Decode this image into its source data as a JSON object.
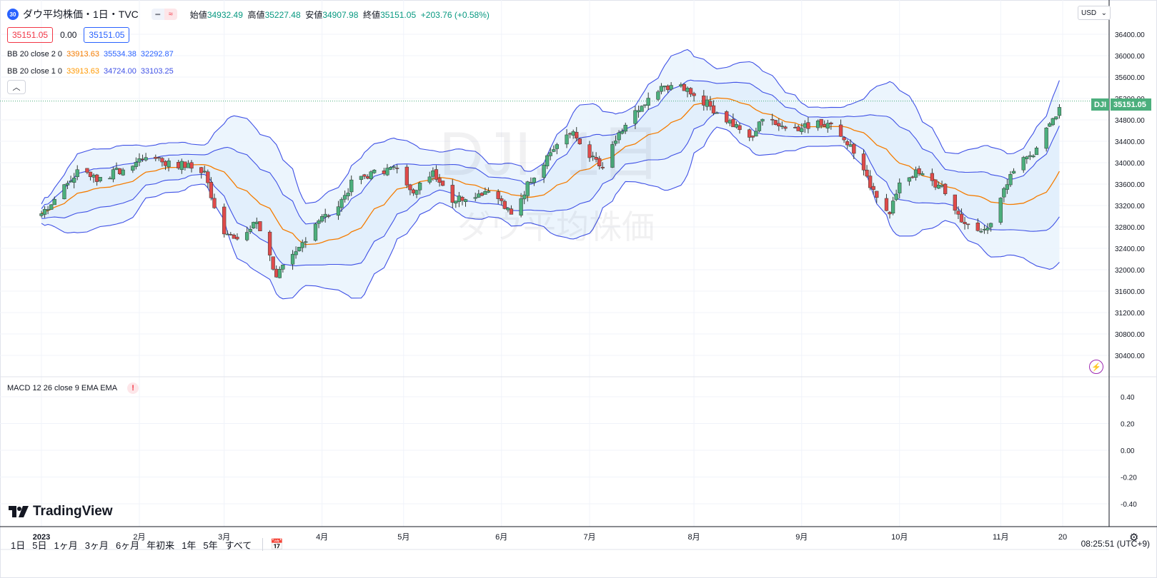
{
  "header": {
    "symbol_badge": "30",
    "title": "ダウ平均株価・1日・TVC",
    "ohlc": {
      "open_label": "始値",
      "open": "34932.49",
      "high_label": "高値",
      "high": "35227.48",
      "low_label": "安値",
      "low": "34907.98",
      "close_label": "終値",
      "close": "35151.05",
      "change": "+203.76 (+0.58%)"
    },
    "bid": "35151.05",
    "spread": "0.00",
    "ask": "35151.05"
  },
  "indicators": {
    "bb2": {
      "name": "BB 20 close 2 0",
      "mid": "33913.63",
      "upper": "35534.38",
      "lower": "32292.87"
    },
    "bb1": {
      "name": "BB 20 close 1 0",
      "mid": "33913.63",
      "upper": "34724.00",
      "lower": "33103.25"
    },
    "macd": {
      "name": "MACD 12 26 close 9 EMA EMA",
      "warn": "!"
    }
  },
  "watermark": {
    "line1": "DJI, 1日",
    "line2": "ダウ平均株価"
  },
  "currency": "USD",
  "last_price_tag": {
    "symbol": "DJI",
    "price": "35151.05"
  },
  "branding": "TradingView",
  "timeframes": [
    "1日",
    "5日",
    "1ヶ月",
    "3ヶ月",
    "6ヶ月",
    "年初来",
    "1年",
    "5年",
    "すべて"
  ],
  "clock": "08:25:51 (UTC+9)",
  "colors": {
    "up": "#4caf7d",
    "down": "#e04a4a",
    "bb_outer": "#3f51e6",
    "bb_mid": "#f57c00",
    "fill": "#e3f2fd",
    "accent": "#2962ff"
  },
  "chart_data": {
    "type": "candlestick",
    "y_ticks": [
      "36400.00",
      "36000.00",
      "35600.00",
      "35200.00",
      "34800.00",
      "34400.00",
      "34000.00",
      "33600.00",
      "33200.00",
      "32800.00",
      "32400.00",
      "32000.00",
      "31600.00",
      "31200.00",
      "30800.00",
      "30400.00"
    ],
    "ylim": [
      30400,
      36400
    ],
    "macd_ticks": [
      "0.40",
      "0.20",
      "0.00",
      "-0.20",
      "-0.40"
    ],
    "x_ticks": [
      "2023",
      "2月",
      "3月",
      "4月",
      "5月",
      "6月",
      "7月",
      "8月",
      "9月",
      "10月",
      "11月",
      "20"
    ],
    "x_tick_days": [
      0,
      30,
      56,
      86,
      111,
      141,
      168,
      200,
      233,
      263,
      294,
      313
    ],
    "anchors": [
      [
        0,
        33050
      ],
      [
        8,
        33600
      ],
      [
        12,
        33900
      ],
      [
        17,
        33700
      ],
      [
        22,
        33800
      ],
      [
        28,
        33950
      ],
      [
        33,
        34200
      ],
      [
        38,
        34000
      ],
      [
        44,
        33950
      ],
      [
        50,
        33800
      ],
      [
        55,
        32800
      ],
      [
        60,
        32500
      ],
      [
        66,
        32900
      ],
      [
        72,
        31900
      ],
      [
        78,
        32300
      ],
      [
        84,
        32900
      ],
      [
        90,
        33100
      ],
      [
        96,
        33700
      ],
      [
        102,
        33800
      ],
      [
        108,
        33900
      ],
      [
        114,
        33500
      ],
      [
        120,
        33850
      ],
      [
        126,
        33300
      ],
      [
        132,
        33400
      ],
      [
        138,
        33500
      ],
      [
        144,
        33000
      ],
      [
        150,
        33700
      ],
      [
        156,
        34200
      ],
      [
        162,
        34600
      ],
      [
        168,
        34100
      ],
      [
        172,
        33900
      ],
      [
        176,
        34400
      ],
      [
        182,
        34900
      ],
      [
        188,
        35300
      ],
      [
        194,
        35500
      ],
      [
        200,
        35300
      ],
      [
        206,
        35000
      ],
      [
        210,
        34800
      ],
      [
        214,
        34600
      ],
      [
        218,
        34500
      ],
      [
        222,
        34900
      ],
      [
        226,
        34700
      ],
      [
        232,
        34600
      ],
      [
        238,
        34800
      ],
      [
        244,
        34600
      ],
      [
        248,
        34300
      ],
      [
        252,
        33800
      ],
      [
        256,
        33300
      ],
      [
        260,
        33100
      ],
      [
        264,
        33700
      ],
      [
        268,
        33800
      ],
      [
        272,
        33700
      ],
      [
        276,
        33500
      ],
      [
        280,
        33100
      ],
      [
        284,
        32800
      ],
      [
        288,
        32700
      ],
      [
        292,
        33000
      ],
      [
        296,
        33600
      ],
      [
        300,
        34100
      ],
      [
        304,
        34200
      ],
      [
        308,
        34600
      ],
      [
        313,
        35151
      ]
    ]
  }
}
